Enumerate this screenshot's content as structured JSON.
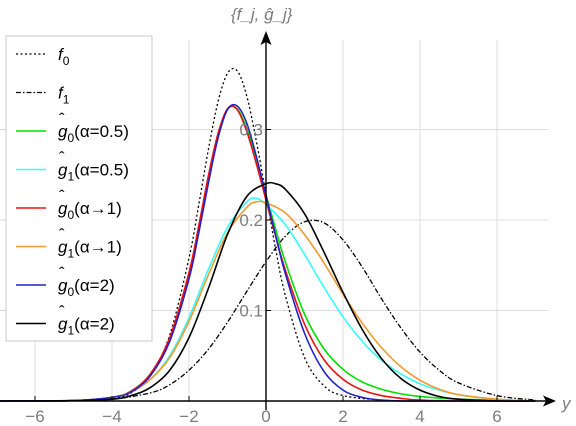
{
  "chart_data": {
    "type": "line",
    "title": "",
    "xlabel": "y",
    "ylabel": "{f_j, ĝ_j}",
    "xlim": [
      -7,
      7.3
    ],
    "ylim": [
      0,
      0.4
    ],
    "xticks": [
      -6,
      -4,
      -2,
      0,
      2,
      4,
      6
    ],
    "yticks": [
      0.1,
      0.2,
      0.3
    ],
    "grid": true,
    "legend_position": "top-left",
    "series": [
      {
        "name": "f0",
        "style": "dotted",
        "color": "#000000",
        "x": [
          -7,
          -6,
          -5,
          -4,
          -3.5,
          -3,
          -2.5,
          -2,
          -1.75,
          -1.5,
          -1.25,
          -1,
          -0.75,
          -0.5,
          -0.25,
          0,
          0.25,
          0.5,
          1,
          1.5,
          2,
          3,
          4,
          5,
          7
        ],
        "y": [
          0,
          0,
          0.0002,
          0.003,
          0.009,
          0.028,
          0.073,
          0.158,
          0.216,
          0.277,
          0.33,
          0.362,
          0.365,
          0.337,
          0.287,
          0.228,
          0.168,
          0.117,
          0.048,
          0.017,
          0.006,
          0.001,
          0,
          0,
          0
        ]
      },
      {
        "name": "f1",
        "style": "dashdot",
        "color": "#000000",
        "x": [
          -7,
          -5,
          -4,
          -3,
          -2.5,
          -2,
          -1.5,
          -1,
          -0.5,
          0,
          0.5,
          1,
          1.5,
          2,
          2.5,
          3,
          3.5,
          4,
          4.5,
          5,
          6,
          7
        ],
        "y": [
          0,
          0.0002,
          0.002,
          0.009,
          0.018,
          0.034,
          0.057,
          0.087,
          0.121,
          0.154,
          0.182,
          0.198,
          0.197,
          0.178,
          0.148,
          0.113,
          0.081,
          0.054,
          0.034,
          0.02,
          0.006,
          0.001
        ]
      },
      {
        "name": "ĝ0(α=0.5)",
        "style": "solid",
        "color": "#00e000",
        "x": [
          -7,
          -5,
          -4,
          -3.5,
          -3,
          -2.5,
          -2,
          -1.75,
          -1.5,
          -1.25,
          -1,
          -0.75,
          -0.5,
          -0.25,
          0,
          0.25,
          0.5,
          1,
          1.5,
          2,
          2.5,
          3,
          3.5,
          4,
          5,
          7
        ],
        "y": [
          0,
          0.0005,
          0.004,
          0.011,
          0.03,
          0.069,
          0.14,
          0.19,
          0.245,
          0.293,
          0.322,
          0.323,
          0.301,
          0.266,
          0.228,
          0.19,
          0.154,
          0.096,
          0.058,
          0.035,
          0.021,
          0.013,
          0.008,
          0.005,
          0.002,
          0
        ]
      },
      {
        "name": "ĝ1(α=0.5)",
        "style": "solid",
        "color": "#33ffff",
        "x": [
          -7,
          -5,
          -4,
          -3.5,
          -3,
          -2.5,
          -2,
          -1.5,
          -1,
          -0.5,
          -0.25,
          0,
          0.5,
          1,
          1.5,
          2,
          2.5,
          3,
          3.5,
          4,
          4.5,
          5,
          6,
          7
        ],
        "y": [
          0,
          0.0005,
          0.004,
          0.01,
          0.024,
          0.05,
          0.092,
          0.145,
          0.192,
          0.22,
          0.224,
          0.217,
          0.195,
          0.162,
          0.126,
          0.093,
          0.066,
          0.045,
          0.03,
          0.019,
          0.012,
          0.007,
          0.002,
          0
        ]
      },
      {
        "name": "ĝ0(α→1)",
        "style": "solid",
        "color": "#ee1111",
        "x": [
          -7,
          -5,
          -4,
          -3.5,
          -3,
          -2.5,
          -2,
          -1.75,
          -1.5,
          -1.25,
          -1,
          -0.75,
          -0.5,
          -0.25,
          0,
          0.25,
          0.5,
          1,
          1.5,
          2,
          2.5,
          3,
          3.5,
          4,
          5,
          7
        ],
        "y": [
          0,
          0.0005,
          0.004,
          0.011,
          0.03,
          0.07,
          0.142,
          0.193,
          0.248,
          0.295,
          0.323,
          0.322,
          0.298,
          0.262,
          0.222,
          0.182,
          0.145,
          0.085,
          0.046,
          0.024,
          0.012,
          0.006,
          0.003,
          0.001,
          0,
          0
        ]
      },
      {
        "name": "ĝ1(α→1)",
        "style": "solid",
        "color": "#f39a2d",
        "x": [
          -7,
          -5,
          -4,
          -3.5,
          -3,
          -2.5,
          -2,
          -1.5,
          -1,
          -0.5,
          -0.25,
          0,
          0.5,
          1,
          1.5,
          2,
          2.5,
          3,
          3.5,
          4,
          4.5,
          5,
          6,
          7
        ],
        "y": [
          0,
          0.0005,
          0.004,
          0.01,
          0.024,
          0.048,
          0.088,
          0.139,
          0.186,
          0.214,
          0.22,
          0.219,
          0.208,
          0.184,
          0.153,
          0.118,
          0.086,
          0.059,
          0.038,
          0.023,
          0.013,
          0.007,
          0.002,
          0
        ]
      },
      {
        "name": "ĝ0(α=2)",
        "style": "solid",
        "color": "#2222cc",
        "x": [
          -7,
          -5,
          -4,
          -3.5,
          -3,
          -2.5,
          -2,
          -1.75,
          -1.5,
          -1.25,
          -1,
          -0.75,
          -0.5,
          -0.25,
          0,
          0.25,
          0.5,
          1,
          1.5,
          2,
          2.5,
          3,
          3.5,
          4,
          5,
          7
        ],
        "y": [
          0,
          0.0005,
          0.004,
          0.01,
          0.028,
          0.066,
          0.135,
          0.185,
          0.24,
          0.29,
          0.322,
          0.326,
          0.307,
          0.27,
          0.227,
          0.183,
          0.141,
          0.075,
          0.033,
          0.012,
          0.004,
          0.001,
          0,
          0,
          0,
          0
        ]
      },
      {
        "name": "ĝ1(α=2)",
        "style": "solid",
        "color": "#000000",
        "x": [
          -7,
          -5,
          -4,
          -3.5,
          -3,
          -2.5,
          -2,
          -1.5,
          -1,
          -0.5,
          0,
          0.25,
          0.5,
          1,
          1.5,
          2,
          2.5,
          3,
          3.5,
          4,
          4.5,
          5,
          6,
          7
        ],
        "y": [
          0,
          0.0003,
          0.002,
          0.006,
          0.015,
          0.034,
          0.07,
          0.124,
          0.184,
          0.226,
          0.24,
          0.24,
          0.234,
          0.207,
          0.165,
          0.12,
          0.079,
          0.047,
          0.025,
          0.012,
          0.005,
          0.002,
          0,
          0
        ]
      }
    ]
  },
  "legend": {
    "items": [
      {
        "base": "f",
        "hat": false,
        "sub": "0",
        "suffix": ""
      },
      {
        "base": "f",
        "hat": false,
        "sub": "1",
        "suffix": ""
      },
      {
        "base": "g",
        "hat": true,
        "sub": "0",
        "suffix": "(α=0.5)"
      },
      {
        "base": "g",
        "hat": true,
        "sub": "1",
        "suffix": "(α=0.5)"
      },
      {
        "base": "g",
        "hat": true,
        "sub": "0",
        "suffix": "(α→1)"
      },
      {
        "base": "g",
        "hat": true,
        "sub": "1",
        "suffix": "(α→1)"
      },
      {
        "base": "g",
        "hat": true,
        "sub": "0",
        "suffix": "(α=2)"
      },
      {
        "base": "g",
        "hat": true,
        "sub": "1",
        "suffix": "(α=2)"
      }
    ]
  },
  "colors": {
    "grid": "#dcdcdc",
    "axis": "#000000",
    "tick_text": "#7d7d7d",
    "legend_frame": "#c8c8c8"
  }
}
